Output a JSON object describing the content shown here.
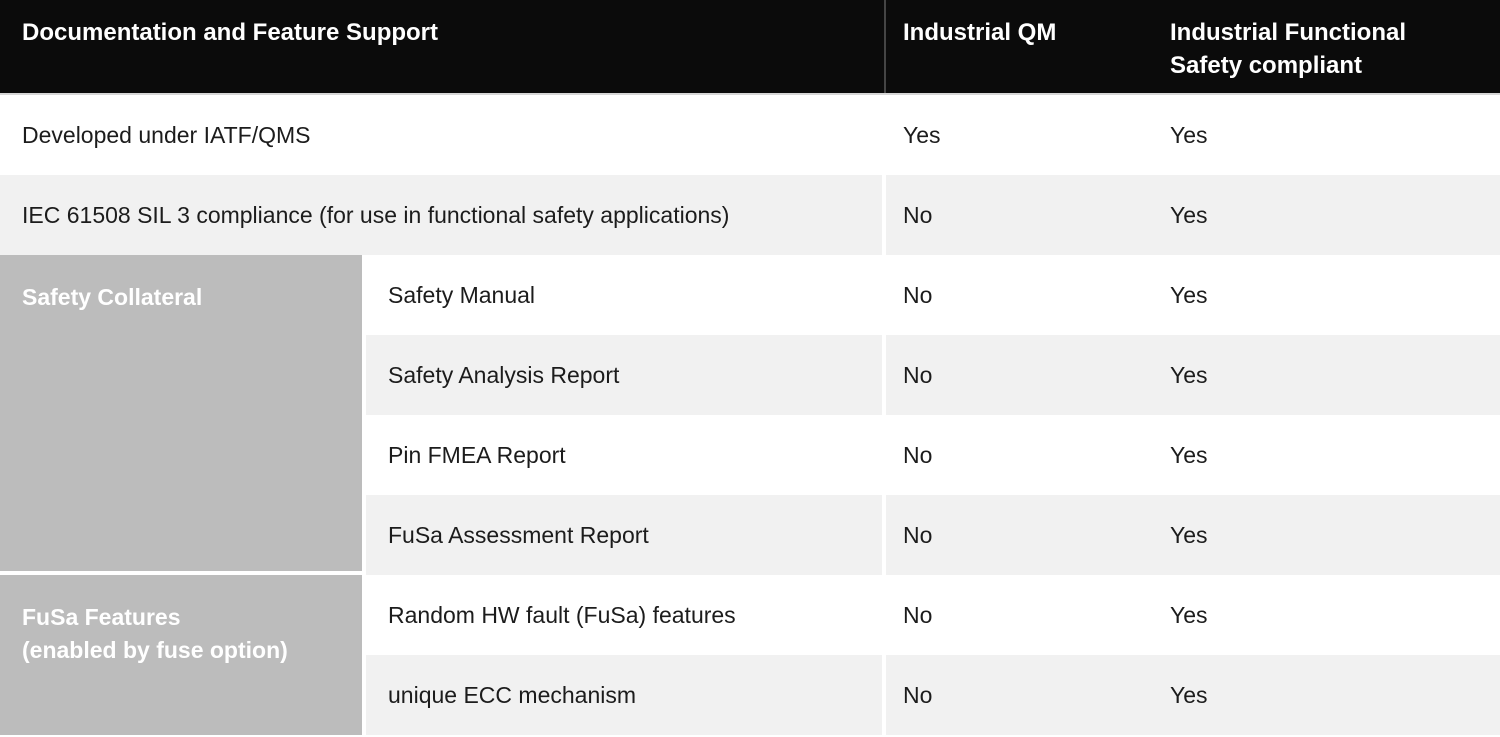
{
  "table": {
    "header": {
      "col1": "Documentation and Feature Support",
      "col2": "Industrial QM",
      "col3": "Industrial Functional\nSafety compliant"
    },
    "rows": [
      {
        "label": "Developed under IATF/QMS",
        "qm": "Yes",
        "fusa": "Yes"
      },
      {
        "label": "IEC 61508 SIL 3 compliance (for use in functional safety applications)",
        "qm": "No",
        "fusa": "Yes"
      }
    ],
    "groups": [
      {
        "label": "Safety Collateral",
        "rows": [
          {
            "label": "Safety Manual",
            "qm": "No",
            "fusa": "Yes"
          },
          {
            "label": "Safety Analysis Report",
            "qm": "No",
            "fusa": "Yes"
          },
          {
            "label": "Pin FMEA Report",
            "qm": "No",
            "fusa": "Yes"
          },
          {
            "label": "FuSa Assessment Report",
            "qm": "No",
            "fusa": "Yes"
          }
        ]
      },
      {
        "label": "FuSa Features\n(enabled by fuse option)",
        "rows": [
          {
            "label": "Random HW fault (FuSa) features",
            "qm": "No",
            "fusa": "Yes"
          },
          {
            "label": "unique ECC mechanism",
            "qm": "No",
            "fusa": "Yes"
          }
        ]
      }
    ],
    "colors": {
      "header_bg": "#0b0b0b",
      "header_text": "#ffffff",
      "row_alt_bg": "#f1f1f1",
      "group_cell_bg": "#bcbcbc",
      "body_text": "#1c1c1c"
    }
  }
}
